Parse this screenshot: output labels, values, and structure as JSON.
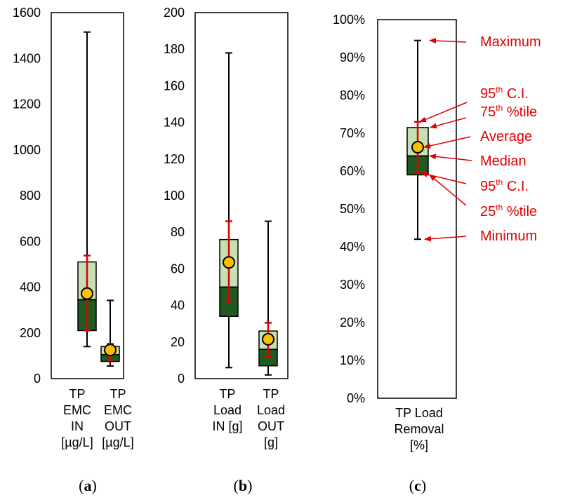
{
  "colors": {
    "upper_box": "#c6e0b4",
    "lower_box": "#215a21",
    "whisker": "#000000",
    "ci": "#e00000",
    "mean_marker": "#ffc000",
    "annotation": "#e00000"
  },
  "chart_data": [
    {
      "type": "box",
      "panel_label": "a",
      "ylim": [
        0,
        1600
      ],
      "y_ticks": [
        "0",
        "200",
        "400",
        "600",
        "800",
        "1000",
        "1200",
        "1400",
        "1600"
      ],
      "categories": [
        [
          "TP",
          "EMC",
          "IN",
          "[µg/L]"
        ],
        [
          "TP",
          "EMC",
          "OUT",
          "[µg/L]"
        ]
      ],
      "boxes": [
        {
          "min": 140,
          "q1": 210,
          "median": 345,
          "q3": 510,
          "max": 1515,
          "mean": 372,
          "ci_low": 210,
          "ci_high": 538
        },
        {
          "min": 55,
          "q1": 75,
          "median": 105,
          "q3": 140,
          "max": 342,
          "mean": 125,
          "ci_low": 80,
          "ci_high": 152
        }
      ]
    },
    {
      "type": "box",
      "panel_label": "b",
      "ylim": [
        0,
        200
      ],
      "y_ticks": [
        "0",
        "20",
        "40",
        "60",
        "80",
        "100",
        "120",
        "140",
        "160",
        "180",
        "200"
      ],
      "categories": [
        [
          "TP",
          "Load",
          "IN [g]"
        ],
        [
          "TP",
          "Load",
          "OUT",
          "[g]"
        ]
      ],
      "boxes": [
        {
          "min": 6,
          "q1": 34,
          "median": 50,
          "q3": 76,
          "max": 178,
          "mean": 63.5,
          "ci_low": 42,
          "ci_high": 86
        },
        {
          "min": 2,
          "q1": 7,
          "median": 16,
          "q3": 26,
          "max": 86,
          "mean": 21.5,
          "ci_low": 12,
          "ci_high": 30.5
        }
      ]
    },
    {
      "type": "box",
      "panel_label": "c",
      "ylim": [
        0,
        100
      ],
      "y_unit": "%",
      "y_ticks": [
        "0%",
        "10%",
        "20%",
        "30%",
        "40%",
        "50%",
        "60%",
        "70%",
        "80%",
        "90%",
        "100%"
      ],
      "categories": [
        [
          "TP Load",
          "Removal",
          "[%]"
        ]
      ],
      "boxes": [
        {
          "min": 42,
          "q1": 59,
          "median": 64,
          "q3": 71.5,
          "max": 94.5,
          "mean": 66.3,
          "ci_low": 59.5,
          "ci_high": 73
        }
      ],
      "annotations": [
        {
          "main": "Maximum",
          "sup": "",
          "tail": "",
          "points_to": 94.5
        },
        {
          "main": "95",
          "sup": "th",
          "tail": " C.I.",
          "points_to": 73
        },
        {
          "main": "75",
          "sup": "th",
          "tail": " %tile",
          "points_to": 71.5
        },
        {
          "main": "Average",
          "sup": "",
          "tail": "",
          "points_to": 66.3
        },
        {
          "main": "Median",
          "sup": "",
          "tail": "",
          "points_to": 64
        },
        {
          "main": "95",
          "sup": "th",
          "tail": " C.I.",
          "points_to": 59.5
        },
        {
          "main": "25",
          "sup": "th",
          "tail": " %tile",
          "points_to": 59
        },
        {
          "main": "Minimum",
          "sup": "",
          "tail": "",
          "points_to": 42
        }
      ]
    }
  ]
}
